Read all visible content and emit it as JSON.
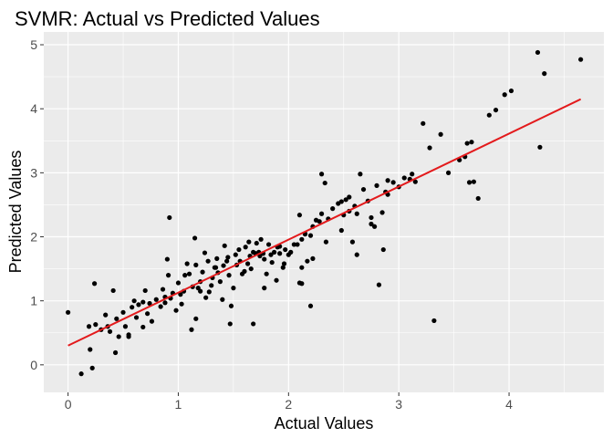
{
  "chart_data": {
    "type": "scatter",
    "title": "SVMR: Actual vs Predicted Values",
    "xlabel": "Actual Values",
    "ylabel": "Predicted Values",
    "xlim": [
      -0.22,
      4.86
    ],
    "ylim": [
      -0.43,
      5.2
    ],
    "xticks": [
      0,
      1,
      2,
      3,
      4
    ],
    "yticks": [
      0,
      1,
      2,
      3,
      4,
      5
    ],
    "grid": true,
    "panel_background": "#ebebeb",
    "grid_color": "#ffffff",
    "point_color": "#000000",
    "line_color": "#e31a1c",
    "points": [
      [
        0.0,
        0.82
      ],
      [
        0.12,
        -0.14
      ],
      [
        0.19,
        0.6
      ],
      [
        0.2,
        0.24
      ],
      [
        0.22,
        -0.05
      ],
      [
        0.24,
        1.27
      ],
      [
        0.25,
        0.63
      ],
      [
        0.3,
        0.55
      ],
      [
        0.34,
        0.78
      ],
      [
        0.38,
        0.52
      ],
      [
        0.41,
        1.16
      ],
      [
        0.43,
        0.19
      ],
      [
        0.44,
        0.72
      ],
      [
        0.46,
        0.44
      ],
      [
        0.5,
        0.82
      ],
      [
        0.52,
        0.6
      ],
      [
        0.55,
        0.47
      ],
      [
        0.58,
        0.9
      ],
      [
        0.6,
        1.0
      ],
      [
        0.62,
        0.74
      ],
      [
        0.64,
        0.94
      ],
      [
        0.68,
        0.59
      ],
      [
        0.7,
        1.16
      ],
      [
        0.72,
        0.8
      ],
      [
        0.74,
        0.96
      ],
      [
        0.76,
        0.68
      ],
      [
        0.8,
        1.02
      ],
      [
        0.84,
        0.91
      ],
      [
        0.86,
        1.18
      ],
      [
        0.88,
        0.97
      ],
      [
        0.9,
        1.65
      ],
      [
        0.91,
        1.4
      ],
      [
        0.92,
        2.3
      ],
      [
        0.93,
        1.04
      ],
      [
        0.95,
        1.12
      ],
      [
        0.98,
        0.85
      ],
      [
        1.0,
        1.28
      ],
      [
        1.02,
        1.1
      ],
      [
        1.03,
        0.95
      ],
      [
        1.05,
        1.15
      ],
      [
        1.06,
        1.4
      ],
      [
        1.08,
        1.58
      ],
      [
        1.1,
        1.42
      ],
      [
        1.12,
        0.55
      ],
      [
        1.13,
        1.22
      ],
      [
        1.15,
        1.98
      ],
      [
        1.16,
        1.56
      ],
      [
        1.18,
        1.2
      ],
      [
        1.2,
        1.3
      ],
      [
        1.22,
        1.45
      ],
      [
        1.24,
        1.75
      ],
      [
        1.25,
        1.05
      ],
      [
        1.27,
        1.62
      ],
      [
        1.28,
        1.14
      ],
      [
        1.3,
        1.24
      ],
      [
        1.31,
        1.36
      ],
      [
        1.33,
        1.52
      ],
      [
        1.35,
        1.66
      ],
      [
        1.36,
        1.44
      ],
      [
        1.38,
        1.3
      ],
      [
        1.4,
        1.02
      ],
      [
        1.41,
        1.55
      ],
      [
        1.42,
        1.86
      ],
      [
        1.44,
        1.62
      ],
      [
        1.45,
        1.68
      ],
      [
        1.46,
        1.4
      ],
      [
        1.48,
        0.92
      ],
      [
        1.5,
        1.2
      ],
      [
        1.52,
        1.72
      ],
      [
        1.53,
        1.56
      ],
      [
        1.55,
        1.8
      ],
      [
        1.56,
        1.62
      ],
      [
        1.58,
        1.42
      ],
      [
        1.6,
        1.46
      ],
      [
        1.61,
        1.84
      ],
      [
        1.63,
        1.58
      ],
      [
        1.65,
        1.7
      ],
      [
        1.66,
        1.5
      ],
      [
        1.68,
        1.76
      ],
      [
        1.7,
        1.74
      ],
      [
        1.71,
        1.9
      ],
      [
        1.73,
        1.76
      ],
      [
        1.74,
        1.7
      ],
      [
        1.75,
        1.96
      ],
      [
        1.77,
        1.74
      ],
      [
        1.78,
        1.65
      ],
      [
        1.8,
        1.42
      ],
      [
        1.82,
        1.88
      ],
      [
        1.84,
        1.72
      ],
      [
        1.85,
        1.6
      ],
      [
        1.87,
        1.76
      ],
      [
        1.89,
        1.32
      ],
      [
        1.9,
        1.84
      ],
      [
        1.92,
        1.74
      ],
      [
        1.95,
        1.52
      ],
      [
        1.97,
        1.8
      ],
      [
        2.0,
        1.72
      ],
      [
        2.02,
        1.76
      ],
      [
        2.05,
        1.88
      ],
      [
        2.08,
        1.88
      ],
      [
        2.1,
        2.34
      ],
      [
        2.12,
        1.96
      ],
      [
        2.15,
        2.04
      ],
      [
        2.17,
        1.62
      ],
      [
        2.2,
        2.02
      ],
      [
        2.22,
        2.16
      ],
      [
        2.25,
        2.26
      ],
      [
        2.28,
        2.24
      ],
      [
        2.3,
        2.98
      ],
      [
        2.33,
        2.84
      ],
      [
        2.36,
        2.28
      ],
      [
        2.4,
        2.44
      ],
      [
        2.45,
        2.52
      ],
      [
        2.48,
        2.1
      ],
      [
        2.5,
        2.34
      ],
      [
        2.52,
        2.58
      ],
      [
        2.55,
        2.4
      ],
      [
        2.58,
        1.92
      ],
      [
        2.6,
        2.48
      ],
      [
        2.62,
        2.36
      ],
      [
        2.65,
        2.98
      ],
      [
        2.68,
        2.74
      ],
      [
        2.72,
        2.56
      ],
      [
        2.75,
        2.3
      ],
      [
        2.78,
        2.16
      ],
      [
        2.8,
        2.8
      ],
      [
        2.85,
        2.38
      ],
      [
        2.88,
        2.7
      ],
      [
        2.9,
        2.66
      ],
      [
        2.95,
        2.85
      ],
      [
        3.0,
        2.78
      ],
      [
        3.05,
        2.92
      ],
      [
        3.1,
        2.9
      ],
      [
        3.22,
        3.77
      ],
      [
        3.28,
        3.39
      ],
      [
        3.32,
        0.69
      ],
      [
        3.38,
        3.6
      ],
      [
        3.45,
        3.0
      ],
      [
        3.55,
        3.2
      ],
      [
        3.6,
        3.25
      ],
      [
        3.62,
        3.46
      ],
      [
        3.64,
        2.85
      ],
      [
        3.66,
        3.48
      ],
      [
        3.68,
        2.86
      ],
      [
        3.72,
        2.6
      ],
      [
        3.82,
        3.9
      ],
      [
        3.88,
        3.98
      ],
      [
        3.96,
        4.22
      ],
      [
        4.02,
        4.28
      ],
      [
        4.26,
        4.88
      ],
      [
        4.28,
        3.4
      ],
      [
        4.32,
        4.55
      ],
      [
        4.65,
        4.77
      ],
      [
        0.55,
        0.44
      ],
      [
        0.88,
        1.06
      ],
      [
        1.2,
        1.15
      ],
      [
        1.47,
        0.64
      ],
      [
        1.68,
        0.64
      ],
      [
        1.96,
        1.58
      ],
      [
        2.12,
        1.27
      ],
      [
        2.15,
        2.05
      ],
      [
        2.22,
        1.66
      ],
      [
        2.3,
        2.36
      ],
      [
        2.48,
        2.55
      ],
      [
        2.55,
        2.62
      ],
      [
        2.62,
        1.72
      ],
      [
        2.75,
        2.2
      ],
      [
        2.9,
        2.88
      ],
      [
        3.12,
        2.98
      ],
      [
        3.15,
        2.86
      ],
      [
        2.86,
        1.8
      ],
      [
        2.34,
        1.92
      ],
      [
        2.12,
        1.52
      ],
      [
        1.64,
        1.92
      ],
      [
        1.34,
        1.52
      ],
      [
        1.16,
        0.72
      ],
      [
        0.68,
        0.98
      ],
      [
        0.36,
        0.6
      ],
      [
        1.78,
        1.2
      ],
      [
        2.2,
        0.92
      ],
      [
        2.82,
        1.25
      ],
      [
        2.1,
        1.28
      ],
      [
        1.92,
        1.85
      ]
    ],
    "fit_line": {
      "x": [
        0.0,
        4.65
      ],
      "y": [
        0.3,
        4.15
      ]
    }
  }
}
